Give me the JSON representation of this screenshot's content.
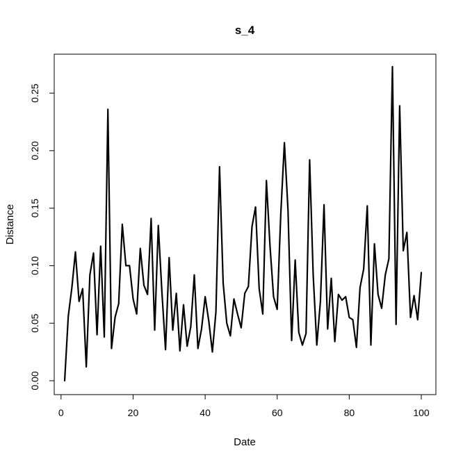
{
  "chart_data": {
    "type": "line",
    "title": "s_4",
    "xlabel": "Date",
    "ylabel": "Distance",
    "xlim": [
      1,
      100
    ],
    "ylim": [
      0,
      0.273
    ],
    "x_ticks": [
      0,
      20,
      40,
      60,
      80,
      100
    ],
    "x_tick_labels": [
      "0",
      "20",
      "40",
      "60",
      "80",
      "100"
    ],
    "y_ticks": [
      0.0,
      0.05,
      0.1,
      0.15,
      0.2,
      0.25
    ],
    "y_tick_labels": [
      "0.00",
      "0.05",
      "0.10",
      "0.15",
      "0.20",
      "0.25"
    ],
    "grid": false,
    "line_color": "#000000",
    "x": [
      1,
      2,
      3,
      4,
      5,
      6,
      7,
      8,
      9,
      10,
      11,
      12,
      13,
      14,
      15,
      16,
      17,
      18,
      19,
      20,
      21,
      22,
      23,
      24,
      25,
      26,
      27,
      28,
      29,
      30,
      31,
      32,
      33,
      34,
      35,
      36,
      37,
      38,
      39,
      40,
      41,
      42,
      43,
      44,
      45,
      46,
      47,
      48,
      49,
      50,
      51,
      52,
      53,
      54,
      55,
      56,
      57,
      58,
      59,
      60,
      61,
      62,
      63,
      64,
      65,
      66,
      67,
      68,
      69,
      70,
      71,
      72,
      73,
      74,
      75,
      76,
      77,
      78,
      79,
      80,
      81,
      82,
      83,
      84,
      85,
      86,
      87,
      88,
      89,
      90,
      91,
      92,
      93,
      94,
      95,
      96,
      97,
      98,
      99,
      100
    ],
    "values": [
      0.0,
      0.056,
      0.081,
      0.112,
      0.069,
      0.08,
      0.012,
      0.092,
      0.111,
      0.04,
      0.117,
      0.038,
      0.236,
      0.028,
      0.055,
      0.067,
      0.136,
      0.1,
      0.1,
      0.071,
      0.058,
      0.115,
      0.083,
      0.075,
      0.141,
      0.044,
      0.135,
      0.077,
      0.027,
      0.107,
      0.044,
      0.076,
      0.026,
      0.066,
      0.03,
      0.047,
      0.092,
      0.028,
      0.045,
      0.073,
      0.052,
      0.025,
      0.06,
      0.186,
      0.085,
      0.05,
      0.039,
      0.071,
      0.058,
      0.046,
      0.076,
      0.082,
      0.134,
      0.151,
      0.08,
      0.058,
      0.174,
      0.117,
      0.073,
      0.062,
      0.145,
      0.207,
      0.148,
      0.035,
      0.105,
      0.042,
      0.031,
      0.041,
      0.192,
      0.092,
      0.031,
      0.069,
      0.153,
      0.045,
      0.089,
      0.034,
      0.075,
      0.07,
      0.073,
      0.055,
      0.053,
      0.029,
      0.081,
      0.097,
      0.152,
      0.031,
      0.119,
      0.075,
      0.063,
      0.092,
      0.106,
      0.273,
      0.049,
      0.239,
      0.113,
      0.129,
      0.055,
      0.074,
      0.053,
      0.094
    ]
  }
}
